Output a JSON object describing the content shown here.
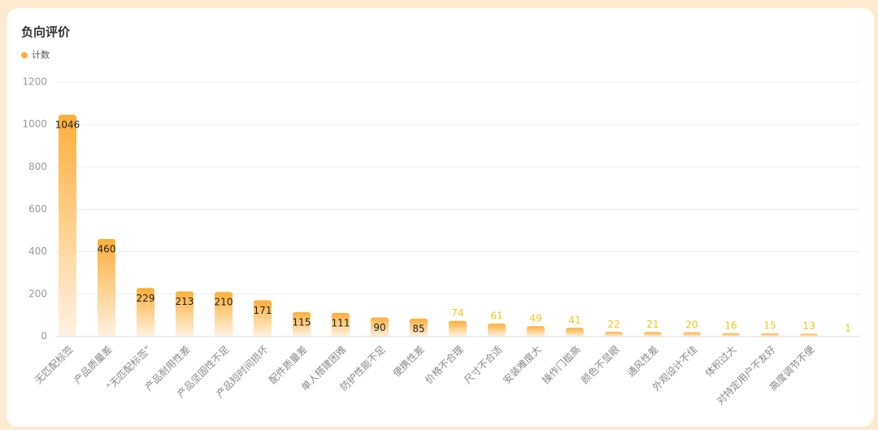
{
  "chart_data": {
    "type": "bar",
    "title": "负向评价",
    "legend": [
      "计数"
    ],
    "categories": [
      "无匹配标签",
      "产品质量差",
      "\"无匹配标签\"",
      "产品耐用性差",
      "产品坚固性不足",
      "产品短时间损坏",
      "配件质量差",
      "单人搭建困难",
      "防护性能不足",
      "便携性差",
      "价格不合理",
      "尺寸不合适",
      "安装难度大",
      "操作门槛高",
      "颜色不显眼",
      "通风性差",
      "外观设计不佳",
      "体积过大",
      "对特定用户不友好",
      "高度调节不便",
      null
    ],
    "values": [
      1046,
      460,
      229,
      213,
      210,
      171,
      115,
      111,
      90,
      85,
      74,
      61,
      49,
      41,
      22,
      21,
      20,
      16,
      15,
      13,
      1
    ],
    "color": "#fdae3a",
    "ylim": [
      0,
      1200
    ],
    "yticks": [
      0,
      200,
      400,
      600,
      800,
      1000,
      1200
    ],
    "grid": true
  }
}
